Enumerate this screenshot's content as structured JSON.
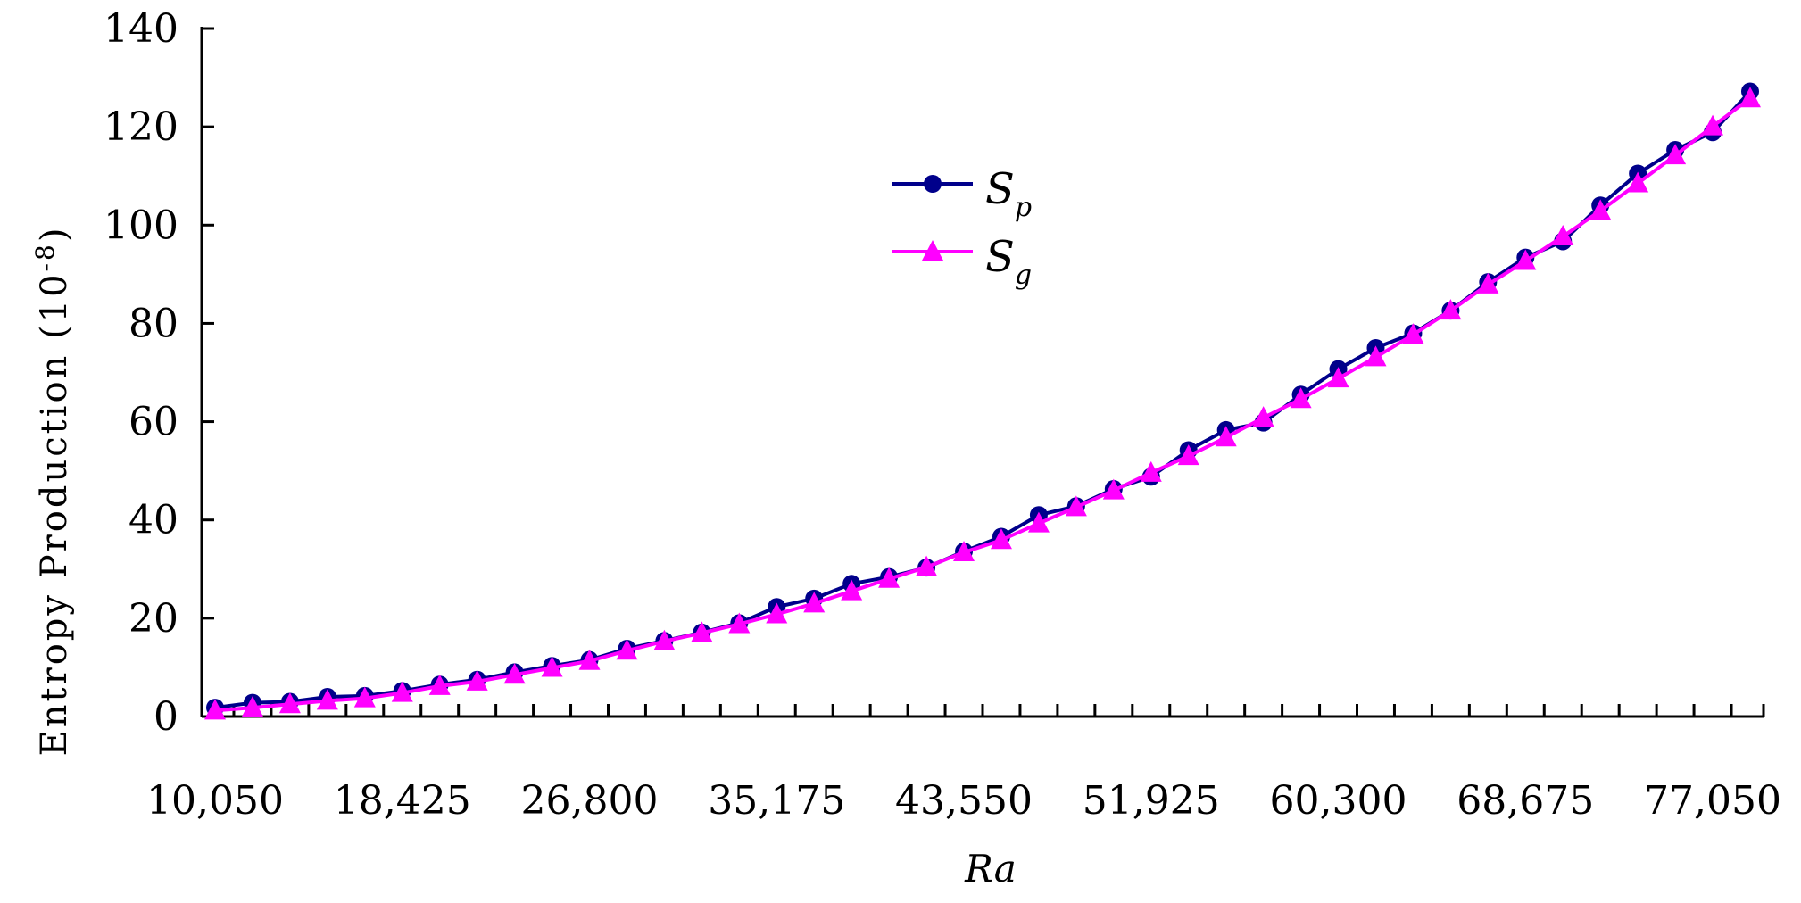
{
  "chart_data": {
    "type": "line",
    "ylabel": "Entropy Production (10",
    "ylabel_exp": "-8",
    "ylabel_close": ")",
    "xlabel": "Ra",
    "ylim": [
      0,
      140
    ],
    "y_ticks": [
      "0",
      "20",
      "40",
      "60",
      "80",
      "100",
      "120",
      "140"
    ],
    "x_tick_labels": [
      "10,050",
      "18,425",
      "26,800",
      "35,175",
      "43,550",
      "51,925",
      "60,300",
      "68,675",
      "77,050"
    ],
    "x_tick_label_index": [
      0,
      5,
      10,
      15,
      20,
      25,
      30,
      35,
      40
    ],
    "x": [
      10050,
      11725,
      13400,
      15075,
      16750,
      18425,
      20100,
      21775,
      23450,
      25125,
      26800,
      28475,
      30150,
      31825,
      33500,
      35175,
      36850,
      38525,
      40200,
      41875,
      43550,
      45225,
      46900,
      48575,
      50250,
      51925,
      53600,
      55275,
      56950,
      58625,
      60300,
      61975,
      63650,
      65325,
      67000,
      68675,
      70350,
      72025,
      73700,
      75375,
      77050,
      78725
    ],
    "grid": false,
    "legend": "upper-center",
    "series": [
      {
        "name": "S",
        "name_sub": "p",
        "color": "#00008B",
        "marker": "circle",
        "values": [
          1.8,
          2.8,
          3.0,
          4.0,
          4.2,
          5.2,
          6.5,
          7.5,
          9.0,
          10.3,
          11.5,
          13.8,
          15.4,
          17.1,
          19.0,
          22.3,
          24.0,
          27.0,
          28.4,
          30.3,
          33.6,
          36.6,
          41.0,
          42.8,
          46.3,
          48.8,
          54.2,
          58.3,
          59.8,
          65.5,
          70.7,
          75.0,
          78.0,
          82.6,
          88.4,
          93.4,
          96.7,
          104.0,
          110.5,
          115.3,
          118.9,
          127.2
        ]
      },
      {
        "name": "S",
        "name_sub": "g",
        "color": "#FF00FF",
        "marker": "triangle",
        "values": [
          1.2,
          1.8,
          2.5,
          3.2,
          3.7,
          4.8,
          6.2,
          7.1,
          8.5,
          9.9,
          11.3,
          13.4,
          15.3,
          17.0,
          18.8,
          20.8,
          23.0,
          25.5,
          28.0,
          30.4,
          33.4,
          35.9,
          39.3,
          42.6,
          46.0,
          49.6,
          53.0,
          56.8,
          60.8,
          64.6,
          68.8,
          73.1,
          77.7,
          82.6,
          87.9,
          92.7,
          97.7,
          102.9,
          108.5,
          114.2,
          120.1,
          125.8
        ]
      }
    ]
  }
}
